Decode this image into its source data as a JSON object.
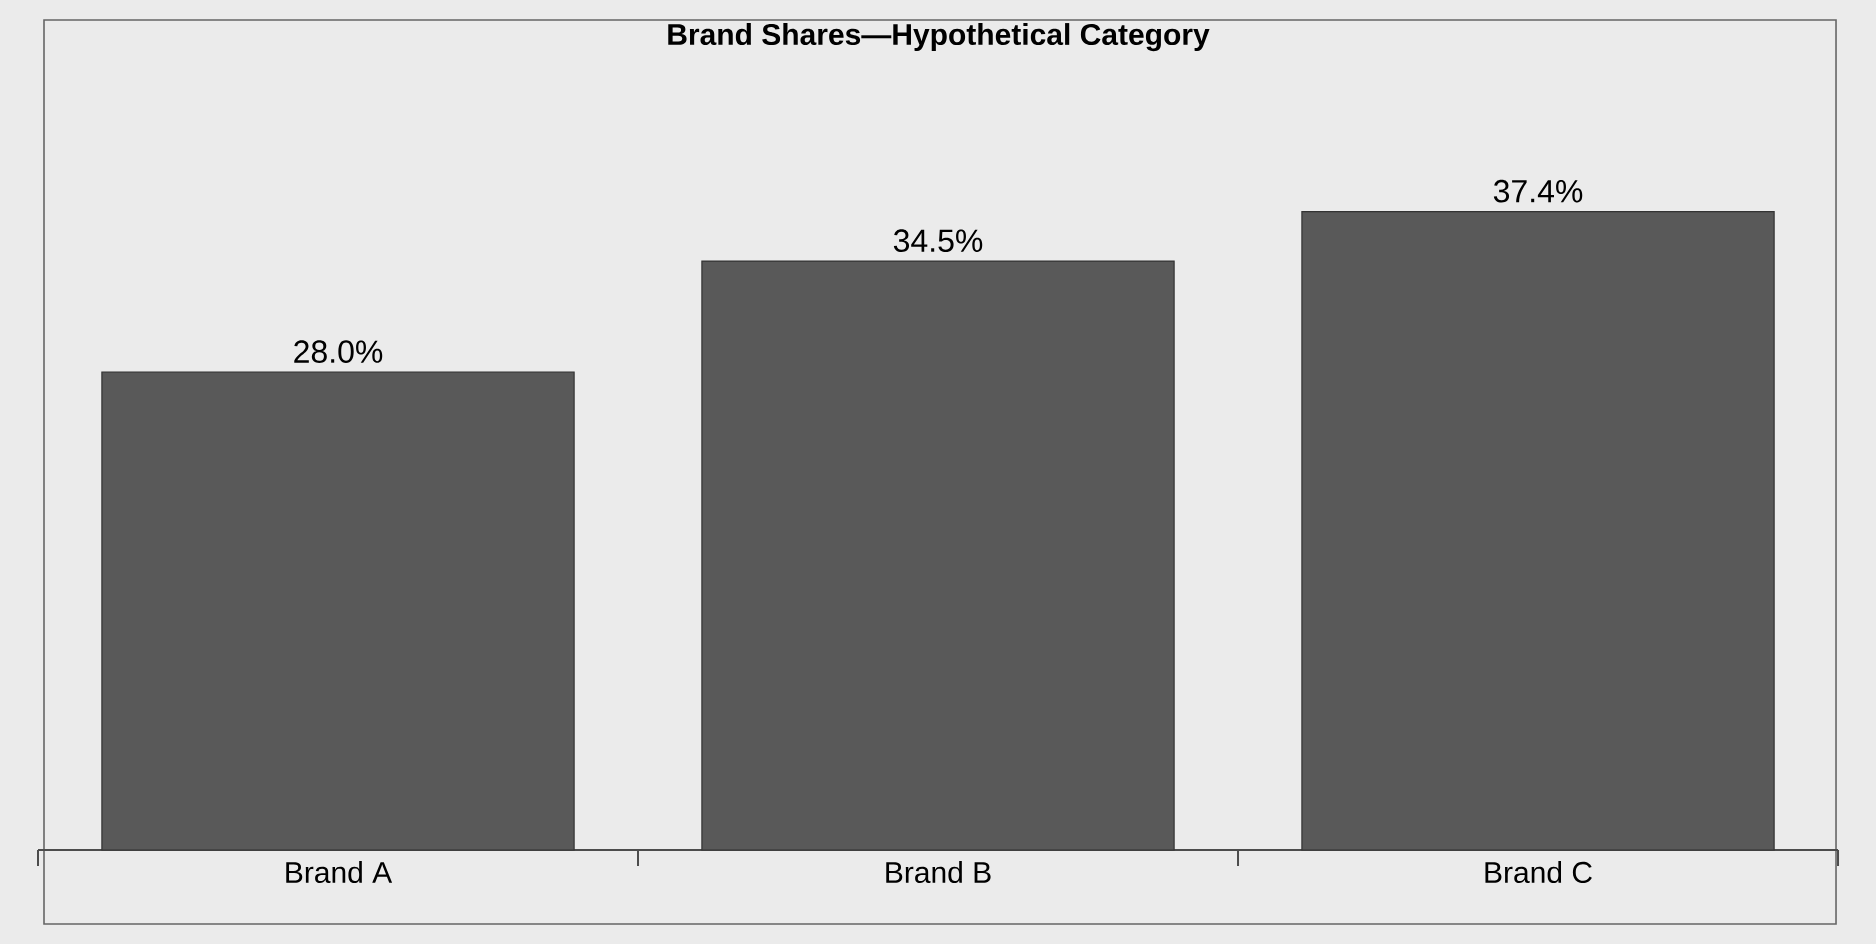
{
  "chart_data": {
    "type": "bar",
    "title": "Brand Shares—Hypothetical Category",
    "categories": [
      "Brand A",
      "Brand B",
      "Brand C"
    ],
    "values": [
      28.0,
      34.5,
      37.4
    ],
    "color": "#595959",
    "value_labels": [
      "28.0%",
      "34.5%",
      "37.4%"
    ]
  }
}
